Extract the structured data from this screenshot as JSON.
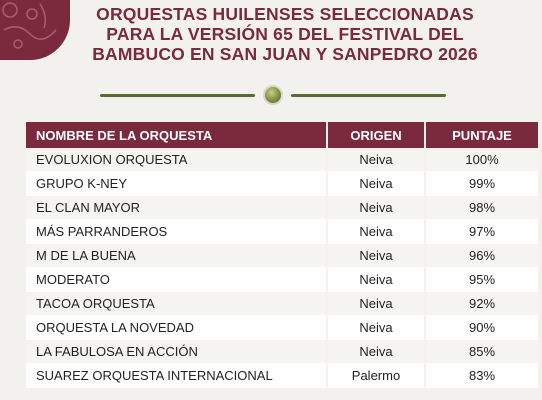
{
  "header": {
    "title_line1": "ORQUESTAS HUILENSES SELECCIONADAS",
    "title_line2": "PARA LA VERSIÓN 65 DEL FESTIVAL DEL",
    "title_line3": "BAMBUCO EN SAN JUAN Y SANPEDRO 2026"
  },
  "colors": {
    "accent": "#7a2a3c",
    "divider": "#556b2f"
  },
  "table": {
    "columns": [
      "NOMBRE DE LA ORQUESTA",
      "ORIGEN",
      "PUNTAJE"
    ],
    "rows": [
      {
        "name": "EVOLUXION ORQUESTA",
        "origin": "Neiva",
        "score": "100%"
      },
      {
        "name": "GRUPO K-NEY",
        "origin": "Neiva",
        "score": "99%"
      },
      {
        "name": "EL CLAN MAYOR",
        "origin": "Neiva",
        "score": "98%"
      },
      {
        "name": "MÁS PARRANDEROS",
        "origin": "Neiva",
        "score": "97%"
      },
      {
        "name": "M DE LA BUENA",
        "origin": "Neiva",
        "score": "96%"
      },
      {
        "name": "MODERATO",
        "origin": "Neiva",
        "score": "95%"
      },
      {
        "name": "TACOA ORQUESTA",
        "origin": "Neiva",
        "score": "92%"
      },
      {
        "name": "ORQUESTA LA NOVEDAD",
        "origin": "Neiva",
        "score": "90%"
      },
      {
        "name": "LA FABULOSA EN ACCIÓN",
        "origin": "Neiva",
        "score": "85%"
      },
      {
        "name": "SUAREZ ORQUESTA INTERNACIONAL",
        "origin": "Palermo",
        "score": "83%"
      }
    ]
  }
}
